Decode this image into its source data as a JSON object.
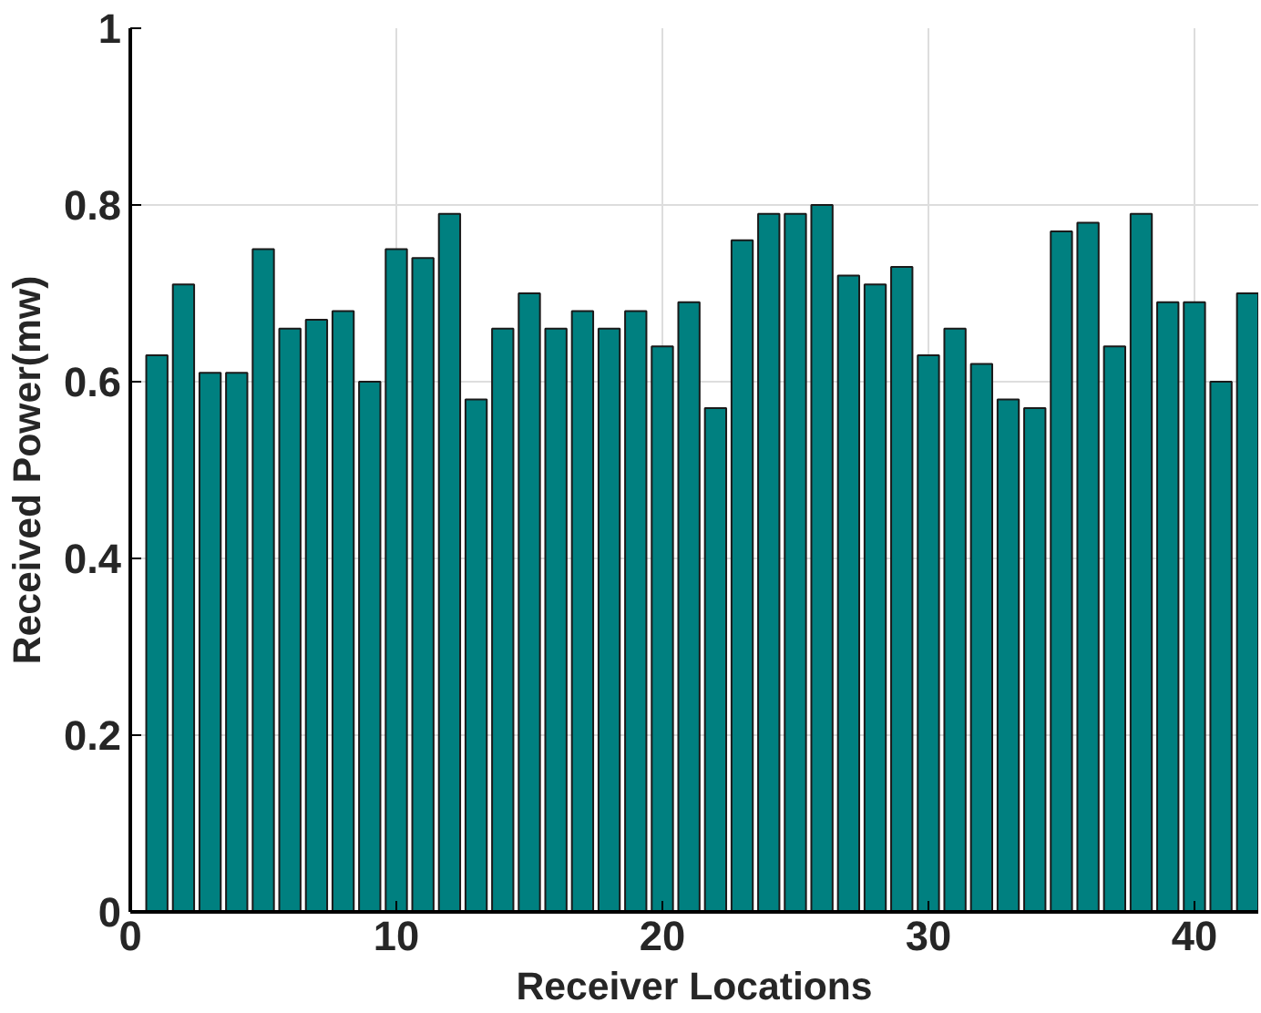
{
  "chart_data": {
    "type": "bar",
    "xlabel": "Receiver Locations",
    "ylabel": "Received Power(mw)",
    "x": [
      1,
      2,
      3,
      4,
      5,
      6,
      7,
      8,
      9,
      10,
      11,
      12,
      13,
      14,
      15,
      16,
      17,
      18,
      19,
      20,
      21,
      22,
      23,
      24,
      25,
      26,
      27,
      28,
      29,
      30,
      31,
      32,
      33,
      34,
      35,
      36,
      37,
      38,
      39,
      40,
      41,
      42
    ],
    "values": [
      0.63,
      0.71,
      0.61,
      0.61,
      0.75,
      0.66,
      0.67,
      0.68,
      0.6,
      0.75,
      0.74,
      0.79,
      0.58,
      0.66,
      0.7,
      0.66,
      0.68,
      0.66,
      0.68,
      0.64,
      0.69,
      0.57,
      0.76,
      0.79,
      0.79,
      0.8,
      0.72,
      0.71,
      0.73,
      0.63,
      0.66,
      0.62,
      0.58,
      0.57,
      0.77,
      0.78,
      0.64,
      0.79,
      0.69,
      0.69,
      0.6,
      0.7
    ],
    "color": "#008080",
    "xlim": [
      0,
      42.4
    ],
    "ylim": [
      0,
      1
    ],
    "xticks": [
      0,
      10,
      20,
      30,
      40
    ],
    "yticks": [
      0,
      0.2,
      0.4,
      0.6,
      0.8,
      1
    ],
    "grid": true
  }
}
